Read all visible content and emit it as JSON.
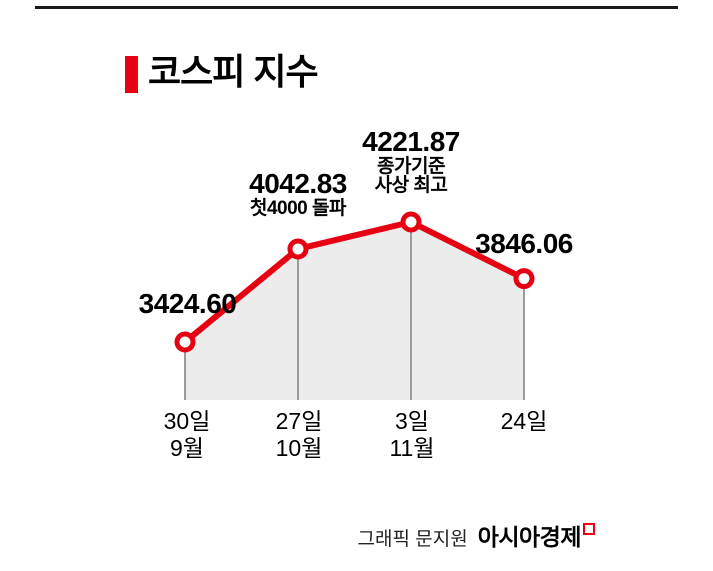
{
  "header": {
    "title": "코스피 지수"
  },
  "chart_data": {
    "type": "line",
    "title": "코스피 지수",
    "categories": [
      "9월 30일",
      "10월 27일",
      "11월 3일",
      "11월 24일"
    ],
    "values": [
      3424.6,
      4042.83,
      4221.87,
      3846.06
    ],
    "point_labels": [
      "3424.60",
      "4042.83",
      "4221.87",
      "3846.06"
    ],
    "x_tick_labels": [
      [
        "30일",
        "9월"
      ],
      [
        "27일",
        "10월"
      ],
      [
        "3일",
        "11월"
      ],
      [
        "24일",
        ""
      ]
    ],
    "annotations": {
      "point2_line1": "첫4000 돌파",
      "point3_line1": "종가기준",
      "point3_line2": "사상 최고"
    },
    "line_color": "#e60012",
    "area_fill": "#ececec",
    "drop_line_color": "#9a9a9a",
    "marker": "open-circle",
    "grid": false,
    "legend": "none",
    "ylim": [
      3300,
      4300
    ]
  },
  "footer": {
    "credit": "그래픽 문지원",
    "brand": "아시아경제"
  }
}
